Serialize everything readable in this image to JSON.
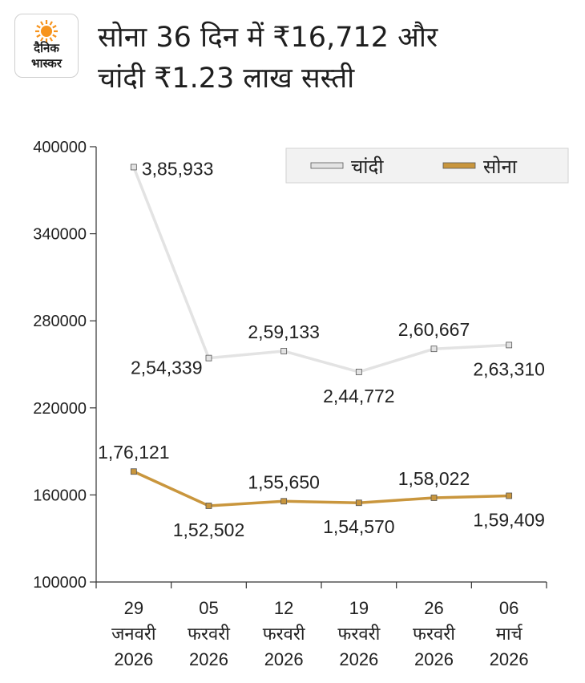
{
  "header": {
    "title_line1": "सोना 36 दिन में ₹16,712 और",
    "title_line2": "चांदी ₹1.23 लाख सस्ती"
  },
  "logo": {
    "line1": "दैनिक",
    "line2": "भास्कर",
    "icon": "sun-icon",
    "accent_color": "#f7941d"
  },
  "colors": {
    "silver": "#e3e3e3",
    "gold": "#c9963d",
    "axis": "#333333"
  },
  "chart_data": {
    "type": "line",
    "categories": [
      [
        "29",
        "जनवरी",
        "2026"
      ],
      [
        "05",
        "फरवरी",
        "2026"
      ],
      [
        "12",
        "फरवरी",
        "2026"
      ],
      [
        "19",
        "फरवरी",
        "2026"
      ],
      [
        "26",
        "फरवरी",
        "2026"
      ],
      [
        "06",
        "मार्च",
        "2026"
      ]
    ],
    "series": [
      {
        "name": "चांदी",
        "values": [
          385933,
          254339,
          259133,
          244772,
          260667,
          263310
        ],
        "labels": [
          "3,85,933",
          "2,54,339",
          "2,59,133",
          "2,44,772",
          "2,60,667",
          "2,63,310"
        ],
        "label_pos": [
          "right",
          "left",
          "above",
          "below",
          "above",
          "below"
        ],
        "color": "#e3e3e3"
      },
      {
        "name": "सोना",
        "values": [
          176121,
          152502,
          155650,
          154570,
          158022,
          159409
        ],
        "labels": [
          "1,76,121",
          "1,52,502",
          "1,55,650",
          "1,54,570",
          "1,58,022",
          "1,59,409"
        ],
        "label_pos": [
          "above",
          "below",
          "above",
          "below",
          "above",
          "below"
        ],
        "color": "#c9963d"
      }
    ],
    "yticks": [
      "400000",
      "340000",
      "280000",
      "220000",
      "160000",
      "100000"
    ],
    "ylim": [
      100000,
      400000
    ],
    "xlabel": "",
    "ylabel": "",
    "grid": false,
    "legend": "top-right"
  }
}
